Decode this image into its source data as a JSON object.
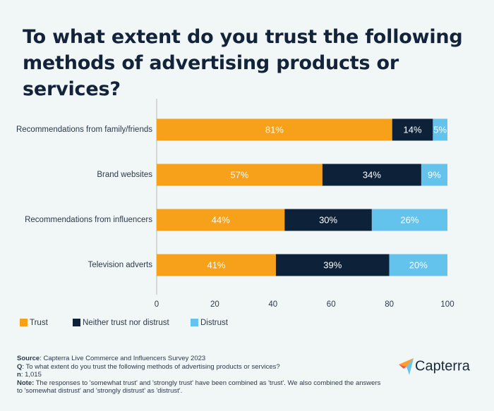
{
  "chart_data": {
    "type": "stacked-bar-horizontal",
    "title": "To what extent do you trust the following methods of advertising products or services?",
    "categories": [
      "Recommendations from family/friends",
      "Brand websites",
      "Recommendations from influencers",
      "Television adverts"
    ],
    "series": [
      {
        "name": "Trust",
        "color": "#f7a11a",
        "values": [
          81,
          57,
          44,
          41
        ],
        "value_labels": [
          "81%",
          "57%",
          "44%",
          "41%"
        ]
      },
      {
        "name": "Neither trust nor distrust",
        "color": "#0d2238",
        "values": [
          14,
          34,
          30,
          39
        ],
        "value_labels": [
          "14%",
          "34%",
          "30%",
          "39%"
        ]
      },
      {
        "name": "Distrust",
        "color": "#63c3ec",
        "values": [
          5,
          9,
          26,
          20
        ],
        "value_labels": [
          "5%",
          "9%",
          "26%",
          "20%"
        ]
      }
    ],
    "xlim": [
      0,
      100
    ],
    "xticks": [
      0,
      20,
      40,
      60,
      80,
      100
    ],
    "grid": false
  },
  "footer": [
    {
      "label": "Source",
      "text": ": Capterra Live Commerce and Influencers Survey 2023"
    },
    {
      "label": "Q",
      "text": ": To what extent do you trust the following methods of advertising products or services?"
    },
    {
      "label": "n",
      "text": ": 1,015"
    },
    {
      "label": "Note:",
      "text": " The responses to 'somewhat trust' and 'strongly trust' have been combined as 'trust'. We also combined the answers to 'somewhat distrust' and 'strongly distrust' as 'distrust'."
    }
  ],
  "logo": "Capterra"
}
